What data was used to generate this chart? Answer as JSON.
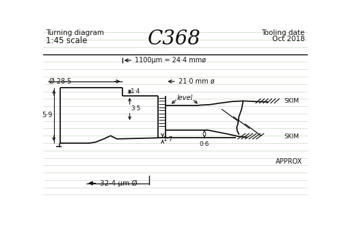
{
  "title": "C368",
  "text_turning": "Turning diagram",
  "text_scale": "1:45 scale",
  "text_tooling": "Tooling date",
  "text_date": "Oct 2018",
  "bg_color": "#ffffff",
  "line_color": "#111111",
  "ruled_color": "#c8d8c0",
  "line_width": 1.3,
  "dim1": "1100μm = 24·4 mmø",
  "dim2": "21·0 mm ø",
  "dim3": "Ø 28·5",
  "dim4": "1·4",
  "dim5": "3·5",
  "dim6": "1·7",
  "dim7": "0·6",
  "dim8": "5·9",
  "dim9": "32·4 μm Ø",
  "lbl_level": "level",
  "lbl_skim": "SKIM",
  "lbl_approx": "APPROX",
  "ruled_lines_y": [
    10,
    24,
    38,
    52,
    66,
    80,
    94,
    108,
    122,
    136,
    150,
    164,
    178,
    192,
    206,
    220,
    234,
    248,
    262,
    276,
    290,
    304,
    318
  ]
}
